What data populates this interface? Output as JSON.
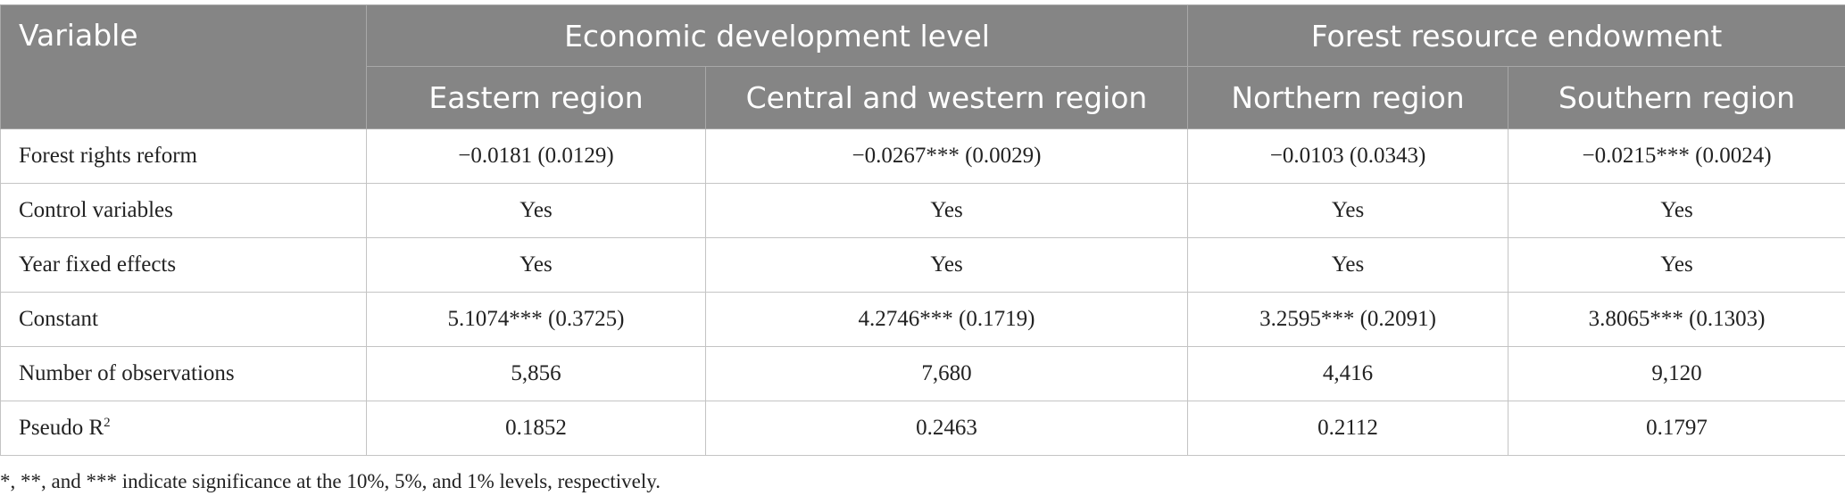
{
  "header": {
    "variable": "Variable",
    "group_economic": "Economic development level",
    "group_forest": "Forest resource endowment",
    "sub_eastern": "Eastern region",
    "sub_central_western": "Central and western region",
    "sub_northern": "Northern region",
    "sub_southern": "Southern region"
  },
  "rows": [
    {
      "label": "Forest rights reform",
      "values": [
        "−0.0181 (0.0129)",
        "−0.0267*** (0.0029)",
        "−0.0103 (0.0343)",
        "−0.0215*** (0.0024)"
      ]
    },
    {
      "label": "Control variables",
      "values": [
        "Yes",
        "Yes",
        "Yes",
        "Yes"
      ]
    },
    {
      "label": "Year fixed effects",
      "values": [
        "Yes",
        "Yes",
        "Yes",
        "Yes"
      ]
    },
    {
      "label": "Constant",
      "values": [
        "5.1074*** (0.3725)",
        "4.2746*** (0.1719)",
        "3.2595*** (0.2091)",
        "3.8065*** (0.1303)"
      ]
    },
    {
      "label": "Number of observations",
      "values": [
        "5,856",
        "7,680",
        "4,416",
        "9,120"
      ]
    },
    {
      "label": "Pseudo R",
      "label_sup": "2",
      "values": [
        "0.1852",
        "0.2463",
        "0.2112",
        "0.1797"
      ]
    }
  ],
  "footnote": "*, **, and *** indicate significance at the 10%, 5%, and 1% levels, respectively.",
  "colors": {
    "header_bg": "#858585",
    "header_text": "#ffffff",
    "grid": "#c4c4c4"
  }
}
